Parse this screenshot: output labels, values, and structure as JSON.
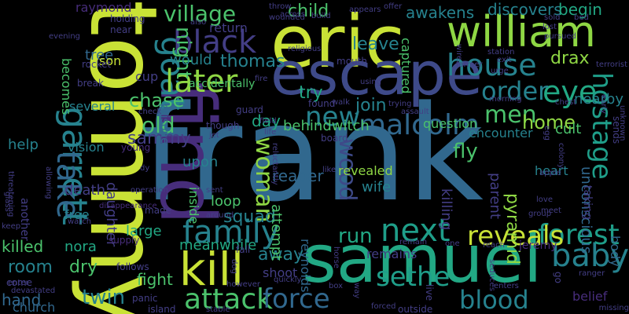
{
  "background": "#000000",
  "palette": {
    "yellow": "#c9e236",
    "lime": "#8fd744",
    "green": "#4bc26c",
    "teal": "#22a884",
    "cyan": "#1f9e89",
    "cyanblue": "#26828e",
    "blue": "#31688e",
    "indigo": "#3e4a89",
    "navy": "#433e85",
    "purple": "#472d7b",
    "deep": "#440154"
  },
  "words": [
    {
      "text": "frank",
      "color": "blue"
    },
    {
      "text": "eric",
      "color": "yellow"
    },
    {
      "text": "escape",
      "color": "indigo"
    },
    {
      "text": "tommy",
      "color": "yellow"
    },
    {
      "text": "find",
      "color": "purple"
    },
    {
      "text": "samuel",
      "color": "teal"
    },
    {
      "text": "william",
      "color": "lime"
    },
    {
      "text": "kill",
      "color": "yellow"
    },
    {
      "text": "garrett",
      "color": "cyanblue"
    },
    {
      "text": "goat",
      "color": "cyanblue"
    },
    {
      "text": "take",
      "color": "blue"
    },
    {
      "text": "house",
      "color": "cyanblue"
    },
    {
      "text": "later",
      "color": "lime"
    },
    {
      "text": "black",
      "color": "navy"
    },
    {
      "text": "village",
      "color": "green"
    },
    {
      "text": "night",
      "color": "green"
    },
    {
      "text": "child",
      "color": "green"
    },
    {
      "text": "awakens",
      "color": "cyanblue"
    },
    {
      "text": "discovers",
      "color": "cyanblue"
    },
    {
      "text": "begin",
      "color": "teal"
    },
    {
      "text": "eye",
      "color": "teal"
    },
    {
      "text": "order",
      "color": "cyanblue"
    },
    {
      "text": "men",
      "color": "green"
    },
    {
      "text": "hostage",
      "color": "cyan"
    },
    {
      "text": "drax",
      "color": "lime"
    },
    {
      "text": "nearby",
      "color": "cyanblue"
    },
    {
      "text": "baby",
      "color": "cyanblue"
    },
    {
      "text": "forest",
      "color": "cyan"
    },
    {
      "text": "reveals",
      "color": "yellow"
    },
    {
      "text": "next",
      "color": "cyan"
    },
    {
      "text": "malcolm",
      "color": "blue"
    },
    {
      "text": "new",
      "color": "cyanblue"
    },
    {
      "text": "wood",
      "color": "indigo"
    },
    {
      "text": "family",
      "color": "cyanblue"
    },
    {
      "text": "attack",
      "color": "green"
    },
    {
      "text": "force",
      "color": "blue"
    },
    {
      "text": "sethe",
      "color": "cyan"
    },
    {
      "text": "blood",
      "color": "cyanblue"
    },
    {
      "text": "run",
      "color": "teal"
    },
    {
      "text": "woman",
      "color": "lime"
    },
    {
      "text": "old",
      "color": "green"
    },
    {
      "text": "chase",
      "color": "green"
    },
    {
      "text": "sammy",
      "color": "navy"
    },
    {
      "text": "thomas",
      "color": "cyanblue"
    },
    {
      "text": "would",
      "color": "cyanblue"
    },
    {
      "text": "return",
      "color": "navy"
    },
    {
      "text": "leave",
      "color": "cyanblue"
    },
    {
      "text": "join",
      "color": "cyanblue"
    },
    {
      "text": "question",
      "color": "green"
    },
    {
      "text": "home",
      "color": "lime"
    },
    {
      "text": "cult",
      "color": "green"
    },
    {
      "text": "heart",
      "color": "cyanblue"
    },
    {
      "text": "unconscious",
      "color": "blue"
    },
    {
      "text": "day",
      "color": "teal"
    },
    {
      "text": "try",
      "color": "teal"
    },
    {
      "text": "behindwitch",
      "color": "green"
    },
    {
      "text": "encounter",
      "color": "cyanblue"
    },
    {
      "text": "help",
      "color": "cyanblue"
    },
    {
      "text": "becomes",
      "color": "green"
    },
    {
      "text": "room",
      "color": "cyanblue"
    },
    {
      "text": "killed",
      "color": "green"
    },
    {
      "text": "hand",
      "color": "blue"
    },
    {
      "text": "church",
      "color": "blue"
    },
    {
      "text": "twin",
      "color": "cyanblue"
    },
    {
      "text": "fight",
      "color": "green"
    },
    {
      "text": "dry",
      "color": "green"
    },
    {
      "text": "nora",
      "color": "teal"
    },
    {
      "text": "free",
      "color": "cyanblue"
    },
    {
      "text": "death",
      "color": "navy"
    },
    {
      "text": "vision",
      "color": "cyanblue"
    },
    {
      "text": "another",
      "color": "navy"
    },
    {
      "text": "large",
      "color": "teal"
    },
    {
      "text": "daughter",
      "color": "navy"
    },
    {
      "text": "inside",
      "color": "green"
    },
    {
      "text": "upon",
      "color": "cyanblue"
    },
    {
      "text": "loop",
      "color": "green"
    },
    {
      "text": "squad",
      "color": "cyanblue"
    },
    {
      "text": "meanwhile",
      "color": "teal"
    },
    {
      "text": "away",
      "color": "cyanblue"
    },
    {
      "text": "attempt",
      "color": "green"
    },
    {
      "text": "reaper",
      "color": "blue"
    },
    {
      "text": "fly",
      "color": "green"
    },
    {
      "text": "killing",
      "color": "navy"
    },
    {
      "text": "revealed",
      "color": "lime"
    },
    {
      "text": "wife",
      "color": "cyanblue"
    },
    {
      "text": "parent",
      "color": "navy"
    },
    {
      "text": "pyramid",
      "color": "lime"
    },
    {
      "text": "reynolds",
      "color": "blue"
    },
    {
      "text": "remains",
      "color": "navy"
    },
    {
      "text": "captured",
      "color": "green"
    },
    {
      "text": "tree",
      "color": "blue"
    },
    {
      "text": "son",
      "color": "yellow"
    },
    {
      "text": "cup",
      "color": "navy"
    },
    {
      "text": "several",
      "color": "cyanblue"
    },
    {
      "text": "prisoner",
      "color": "blue"
    },
    {
      "text": "accidentally",
      "color": "green"
    },
    {
      "text": "raymond",
      "color": "purple"
    },
    {
      "text": "taking",
      "color": "navy"
    },
    {
      "text": "body",
      "color": "blue"
    },
    {
      "text": "shoot",
      "color": "navy"
    },
    {
      "text": "jeremy",
      "color": "purple"
    },
    {
      "text": "belief",
      "color": "purple"
    },
    {
      "text": "holding",
      "color": "navy"
    },
    {
      "text": "near",
      "color": "navy"
    },
    {
      "text": "rocket",
      "color": "navy"
    },
    {
      "text": "threatening",
      "color": "navy"
    },
    {
      "text": "evening",
      "color": "navy"
    },
    {
      "text": "break",
      "color": "navy"
    },
    {
      "text": "young",
      "color": "purple"
    },
    {
      "text": "island",
      "color": "navy"
    },
    {
      "text": "panic",
      "color": "navy"
    },
    {
      "text": "follows",
      "color": "navy"
    },
    {
      "text": "come",
      "color": "navy"
    },
    {
      "text": "devastated",
      "color": "navy"
    },
    {
      "text": "keep",
      "color": "navy"
    },
    {
      "text": "glass",
      "color": "navy"
    },
    {
      "text": "allowing",
      "color": "navy"
    },
    {
      "text": "check",
      "color": "navy"
    },
    {
      "text": "watch",
      "color": "navy"
    },
    {
      "text": "supply",
      "color": "purple"
    },
    {
      "text": "made",
      "color": "navy"
    },
    {
      "text": "operation",
      "color": "navy"
    },
    {
      "text": "disappearance",
      "color": "purple"
    },
    {
      "text": "dy",
      "color": "navy"
    },
    {
      "text": "around",
      "color": "navy"
    },
    {
      "text": "sent",
      "color": "navy"
    },
    {
      "text": "jet",
      "color": "navy"
    },
    {
      "text": "though",
      "color": "navy"
    },
    {
      "text": "guard",
      "color": "navy"
    },
    {
      "text": "field",
      "color": "navy"
    },
    {
      "text": "life",
      "color": "navy"
    },
    {
      "text": "reluctantly",
      "color": "navy"
    },
    {
      "text": "like",
      "color": "navy"
    },
    {
      "text": "board",
      "color": "navy"
    },
    {
      "text": "found",
      "color": "navy"
    },
    {
      "text": "walk",
      "color": "navy"
    },
    {
      "text": "using",
      "color": "navy"
    },
    {
      "text": "mouth",
      "color": "navy"
    },
    {
      "text": "religious",
      "color": "navy"
    },
    {
      "text": "fire",
      "color": "navy"
    },
    {
      "text": "trying",
      "color": "navy"
    },
    {
      "text": "assault",
      "color": "navy"
    },
    {
      "text": "farmer",
      "color": "navy"
    },
    {
      "text": "wire",
      "color": "navy"
    },
    {
      "text": "exit",
      "color": "navy"
    },
    {
      "text": "station",
      "color": "navy"
    },
    {
      "text": "urge",
      "color": "navy"
    },
    {
      "text": "morning",
      "color": "navy"
    },
    {
      "text": "chest",
      "color": "navy"
    },
    {
      "text": "sold",
      "color": "navy"
    },
    {
      "text": "bed",
      "color": "navy"
    },
    {
      "text": "lost",
      "color": "navy"
    },
    {
      "text": "pursued",
      "color": "navy"
    },
    {
      "text": "terrorist",
      "color": "navy"
    },
    {
      "text": "early",
      "color": "navy"
    },
    {
      "text": "unknown",
      "color": "navy"
    },
    {
      "text": "sends",
      "color": "navy"
    },
    {
      "text": "egg",
      "color": "navy"
    },
    {
      "text": "colony",
      "color": "navy"
    },
    {
      "text": "apple",
      "color": "navy"
    },
    {
      "text": "group",
      "color": "navy"
    },
    {
      "text": "love",
      "color": "navy"
    },
    {
      "text": "meet",
      "color": "navy"
    },
    {
      "text": "ranger",
      "color": "navy"
    },
    {
      "text": "go",
      "color": "navy"
    },
    {
      "text": "reach",
      "color": "navy"
    },
    {
      "text": "remain",
      "color": "navy"
    },
    {
      "text": "one",
      "color": "navy"
    },
    {
      "text": "seduces",
      "color": "navy"
    },
    {
      "text": "enters",
      "color": "navy"
    },
    {
      "text": "outside",
      "color": "navy"
    },
    {
      "text": "forced",
      "color": "navy"
    },
    {
      "text": "missing",
      "color": "navy"
    },
    {
      "text": "way",
      "color": "navy"
    },
    {
      "text": "box",
      "color": "navy"
    },
    {
      "text": "horse",
      "color": "navy"
    },
    {
      "text": "live",
      "color": "navy"
    },
    {
      "text": "stable",
      "color": "navy"
    },
    {
      "text": "quickly",
      "color": "navy"
    },
    {
      "text": "however",
      "color": "navy"
    },
    {
      "text": "fall",
      "color": "navy"
    },
    {
      "text": "dog",
      "color": "navy"
    },
    {
      "text": "throw",
      "color": "navy"
    },
    {
      "text": "across",
      "color": "navy"
    },
    {
      "text": "wounded",
      "color": "navy"
    },
    {
      "text": "also",
      "color": "navy"
    },
    {
      "text": "enter",
      "color": "navy"
    },
    {
      "text": "offer",
      "color": "navy"
    },
    {
      "text": "build",
      "color": "navy"
    },
    {
      "text": "appears",
      "color": "navy"
    }
  ]
}
